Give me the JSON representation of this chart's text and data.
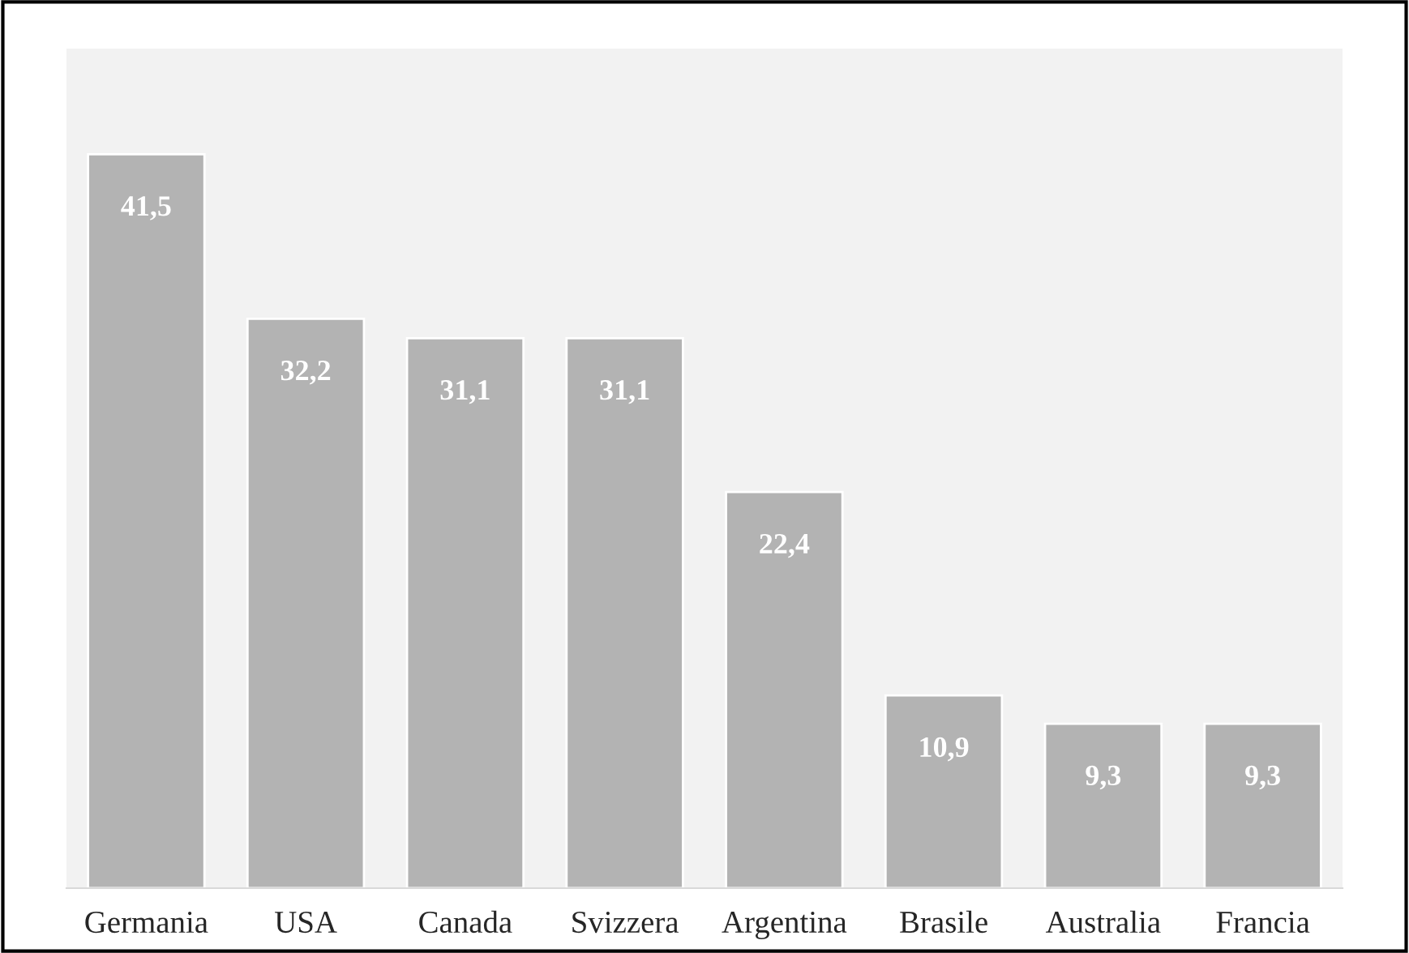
{
  "chart_data": {
    "type": "bar",
    "categories": [
      "Germania",
      "USA",
      "Canada",
      "Svizzera",
      "Argentina",
      "Brasile",
      "Australia",
      "Francia"
    ],
    "values": [
      41.5,
      32.2,
      31.1,
      31.1,
      22.4,
      10.9,
      9.3,
      9.3
    ],
    "value_labels": [
      "41,5",
      "32,2",
      "31,1",
      "31,1",
      "22,4",
      "10,9",
      "9,3",
      "9,3"
    ],
    "color": "#b3b3b3",
    "grid": false,
    "legend": false
  }
}
